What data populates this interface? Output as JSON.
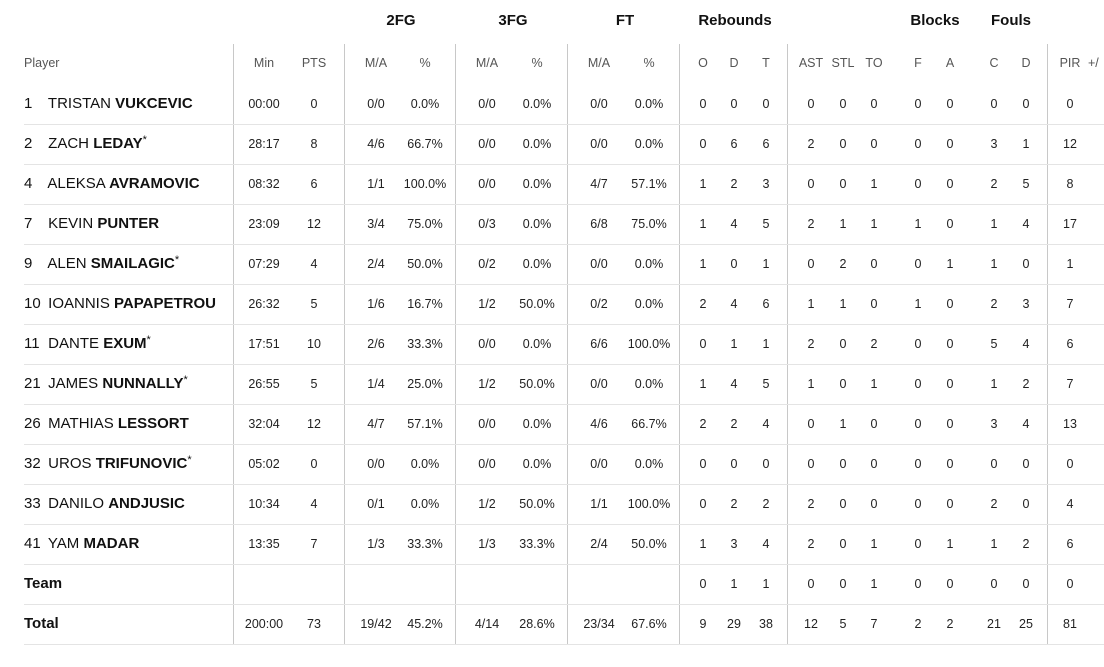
{
  "groups": {
    "fg2": "2FG",
    "fg3": "3FG",
    "ft": "FT",
    "reb": "Rebounds",
    "blk": "Blocks",
    "fouls": "Fouls"
  },
  "headers": {
    "player": "Player",
    "min": "Min",
    "pts": "PTS",
    "fg2_ma": "M/A",
    "fg2_pct": "%",
    "fg3_ma": "M/A",
    "fg3_pct": "%",
    "ft_ma": "M/A",
    "ft_pct": "%",
    "reb_o": "O",
    "reb_d": "D",
    "reb_t": "T",
    "ast": "AST",
    "stl": "STL",
    "to": "TO",
    "blk_f": "F",
    "blk_a": "A",
    "foul_c": "C",
    "foul_d": "D",
    "pir": "PIR",
    "pm": "+/"
  },
  "players": [
    {
      "num": "1",
      "first": "TRISTAN",
      "last": "VUKCEVIC",
      "star": "",
      "min": "00:00",
      "pts": "0",
      "fg2_ma": "0/0",
      "fg2_pct": "0.0%",
      "fg3_ma": "0/0",
      "fg3_pct": "0.0%",
      "ft_ma": "0/0",
      "ft_pct": "0.0%",
      "o": "0",
      "d": "0",
      "t": "0",
      "ast": "0",
      "stl": "0",
      "to": "0",
      "bf": "0",
      "ba": "0",
      "fc": "0",
      "fd": "0",
      "pir": "0"
    },
    {
      "num": "2",
      "first": "ZACH",
      "last": "LEDAY",
      "star": "*",
      "min": "28:17",
      "pts": "8",
      "fg2_ma": "4/6",
      "fg2_pct": "66.7%",
      "fg3_ma": "0/0",
      "fg3_pct": "0.0%",
      "ft_ma": "0/0",
      "ft_pct": "0.0%",
      "o": "0",
      "d": "6",
      "t": "6",
      "ast": "2",
      "stl": "0",
      "to": "0",
      "bf": "0",
      "ba": "0",
      "fc": "3",
      "fd": "1",
      "pir": "12"
    },
    {
      "num": "4",
      "first": "ALEKSA",
      "last": "AVRAMOVIC",
      "star": "",
      "min": "08:32",
      "pts": "6",
      "fg2_ma": "1/1",
      "fg2_pct": "100.0%",
      "fg3_ma": "0/0",
      "fg3_pct": "0.0%",
      "ft_ma": "4/7",
      "ft_pct": "57.1%",
      "o": "1",
      "d": "2",
      "t": "3",
      "ast": "0",
      "stl": "0",
      "to": "1",
      "bf": "0",
      "ba": "0",
      "fc": "2",
      "fd": "5",
      "pir": "8"
    },
    {
      "num": "7",
      "first": "KEVIN",
      "last": "PUNTER",
      "star": "",
      "min": "23:09",
      "pts": "12",
      "fg2_ma": "3/4",
      "fg2_pct": "75.0%",
      "fg3_ma": "0/3",
      "fg3_pct": "0.0%",
      "ft_ma": "6/8",
      "ft_pct": "75.0%",
      "o": "1",
      "d": "4",
      "t": "5",
      "ast": "2",
      "stl": "1",
      "to": "1",
      "bf": "1",
      "ba": "0",
      "fc": "1",
      "fd": "4",
      "pir": "17"
    },
    {
      "num": "9",
      "first": "ALEN",
      "last": "SMAILAGIC",
      "star": "*",
      "min": "07:29",
      "pts": "4",
      "fg2_ma": "2/4",
      "fg2_pct": "50.0%",
      "fg3_ma": "0/2",
      "fg3_pct": "0.0%",
      "ft_ma": "0/0",
      "ft_pct": "0.0%",
      "o": "1",
      "d": "0",
      "t": "1",
      "ast": "0",
      "stl": "2",
      "to": "0",
      "bf": "0",
      "ba": "1",
      "fc": "1",
      "fd": "0",
      "pir": "1"
    },
    {
      "num": "10",
      "first": "IOANNIS",
      "last": "PAPAPETROU",
      "star": "",
      "min": "26:32",
      "pts": "5",
      "fg2_ma": "1/6",
      "fg2_pct": "16.7%",
      "fg3_ma": "1/2",
      "fg3_pct": "50.0%",
      "ft_ma": "0/2",
      "ft_pct": "0.0%",
      "o": "2",
      "d": "4",
      "t": "6",
      "ast": "1",
      "stl": "1",
      "to": "0",
      "bf": "1",
      "ba": "0",
      "fc": "2",
      "fd": "3",
      "pir": "7"
    },
    {
      "num": "11",
      "first": "DANTE",
      "last": "EXUM",
      "star": "*",
      "min": "17:51",
      "pts": "10",
      "fg2_ma": "2/6",
      "fg2_pct": "33.3%",
      "fg3_ma": "0/0",
      "fg3_pct": "0.0%",
      "ft_ma": "6/6",
      "ft_pct": "100.0%",
      "o": "0",
      "d": "1",
      "t": "1",
      "ast": "2",
      "stl": "0",
      "to": "2",
      "bf": "0",
      "ba": "0",
      "fc": "5",
      "fd": "4",
      "pir": "6"
    },
    {
      "num": "21",
      "first": "JAMES",
      "last": "NUNNALLY",
      "star": "*",
      "min": "26:55",
      "pts": "5",
      "fg2_ma": "1/4",
      "fg2_pct": "25.0%",
      "fg3_ma": "1/2",
      "fg3_pct": "50.0%",
      "ft_ma": "0/0",
      "ft_pct": "0.0%",
      "o": "1",
      "d": "4",
      "t": "5",
      "ast": "1",
      "stl": "0",
      "to": "1",
      "bf": "0",
      "ba": "0",
      "fc": "1",
      "fd": "2",
      "pir": "7"
    },
    {
      "num": "26",
      "first": "MATHIAS",
      "last": "LESSORT",
      "star": "",
      "min": "32:04",
      "pts": "12",
      "fg2_ma": "4/7",
      "fg2_pct": "57.1%",
      "fg3_ma": "0/0",
      "fg3_pct": "0.0%",
      "ft_ma": "4/6",
      "ft_pct": "66.7%",
      "o": "2",
      "d": "2",
      "t": "4",
      "ast": "0",
      "stl": "1",
      "to": "0",
      "bf": "0",
      "ba": "0",
      "fc": "3",
      "fd": "4",
      "pir": "13"
    },
    {
      "num": "32",
      "first": "UROS",
      "last": "TRIFUNOVIC",
      "star": "*",
      "min": "05:02",
      "pts": "0",
      "fg2_ma": "0/0",
      "fg2_pct": "0.0%",
      "fg3_ma": "0/0",
      "fg3_pct": "0.0%",
      "ft_ma": "0/0",
      "ft_pct": "0.0%",
      "o": "0",
      "d": "0",
      "t": "0",
      "ast": "0",
      "stl": "0",
      "to": "0",
      "bf": "0",
      "ba": "0",
      "fc": "0",
      "fd": "0",
      "pir": "0"
    },
    {
      "num": "33",
      "first": "DANILO",
      "last": "ANDJUSIC",
      "star": "",
      "min": "10:34",
      "pts": "4",
      "fg2_ma": "0/1",
      "fg2_pct": "0.0%",
      "fg3_ma": "1/2",
      "fg3_pct": "50.0%",
      "ft_ma": "1/1",
      "ft_pct": "100.0%",
      "o": "0",
      "d": "2",
      "t": "2",
      "ast": "2",
      "stl": "0",
      "to": "0",
      "bf": "0",
      "ba": "0",
      "fc": "2",
      "fd": "0",
      "pir": "4"
    },
    {
      "num": "41",
      "first": "YAM",
      "last": "MADAR",
      "star": "",
      "min": "13:35",
      "pts": "7",
      "fg2_ma": "1/3",
      "fg2_pct": "33.3%",
      "fg3_ma": "1/3",
      "fg3_pct": "33.3%",
      "ft_ma": "2/4",
      "ft_pct": "50.0%",
      "o": "1",
      "d": "3",
      "t": "4",
      "ast": "2",
      "stl": "0",
      "to": "1",
      "bf": "0",
      "ba": "1",
      "fc": "1",
      "fd": "2",
      "pir": "6"
    }
  ],
  "team": {
    "label": "Team",
    "min": "",
    "pts": "",
    "fg2_ma": "",
    "fg2_pct": "",
    "fg3_ma": "",
    "fg3_pct": "",
    "ft_ma": "",
    "ft_pct": "",
    "o": "0",
    "d": "1",
    "t": "1",
    "ast": "0",
    "stl": "0",
    "to": "1",
    "bf": "0",
    "ba": "0",
    "fc": "0",
    "fd": "0",
    "pir": "0"
  },
  "total": {
    "label": "Total",
    "min": "200:00",
    "pts": "73",
    "fg2_ma": "19/42",
    "fg2_pct": "45.2%",
    "fg3_ma": "4/14",
    "fg3_pct": "28.6%",
    "ft_ma": "23/34",
    "ft_pct": "67.6%",
    "o": "9",
    "d": "29",
    "t": "38",
    "ast": "12",
    "stl": "5",
    "to": "7",
    "bf": "2",
    "ba": "2",
    "fc": "21",
    "fd": "25",
    "pir": "81"
  }
}
